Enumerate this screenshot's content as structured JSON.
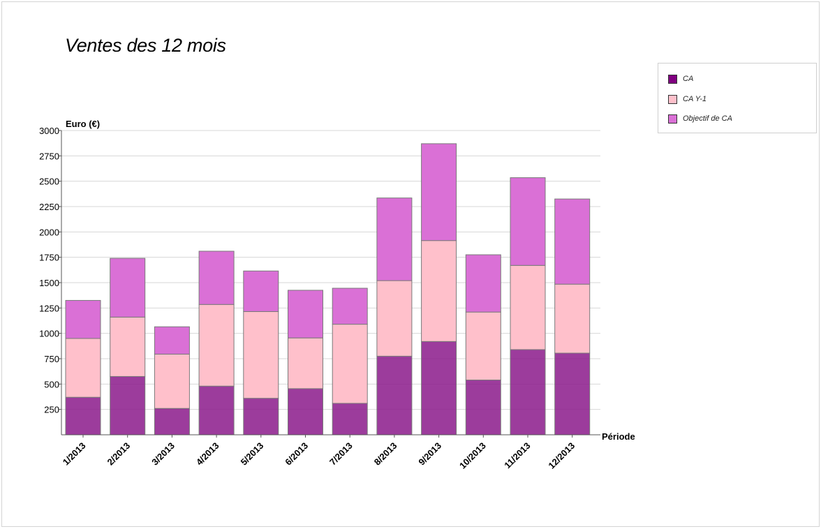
{
  "chart_data": {
    "type": "bar",
    "stacked": true,
    "title": "Ventes des 12 mois",
    "xlabel": "Période",
    "ylabel": "Euro (€)",
    "ylim": [
      0,
      3000
    ],
    "yticks": [
      250,
      500,
      750,
      1000,
      1250,
      1500,
      1750,
      2000,
      2250,
      2500,
      2750,
      3000
    ],
    "grid": true,
    "legend_position": "right",
    "categories": [
      "1/2013",
      "2/2013",
      "3/2013",
      "4/2013",
      "5/2013",
      "6/2013",
      "7/2013",
      "8/2013",
      "9/2013",
      "10/2013",
      "11/2013",
      "12/2013"
    ],
    "series": [
      {
        "name": "CA",
        "color": "#8b1a8b",
        "values": [
          370,
          575,
          260,
          480,
          360,
          455,
          310,
          775,
          920,
          540,
          840,
          805
        ]
      },
      {
        "name": "CA Y-1",
        "color": "#ffc0cb",
        "values": [
          580,
          585,
          535,
          805,
          855,
          500,
          780,
          745,
          995,
          670,
          830,
          680
        ]
      },
      {
        "name": "Objectif de CA",
        "color": "#da70d6",
        "values": [
          375,
          580,
          270,
          525,
          400,
          470,
          355,
          815,
          955,
          565,
          865,
          840
        ]
      }
    ]
  },
  "legend": {
    "items": [
      {
        "label": "CA",
        "color": "#800080"
      },
      {
        "label": "CA Y-1",
        "color": "#ffc0cb"
      },
      {
        "label": "Objectif de CA",
        "color": "#da70d6"
      }
    ]
  }
}
